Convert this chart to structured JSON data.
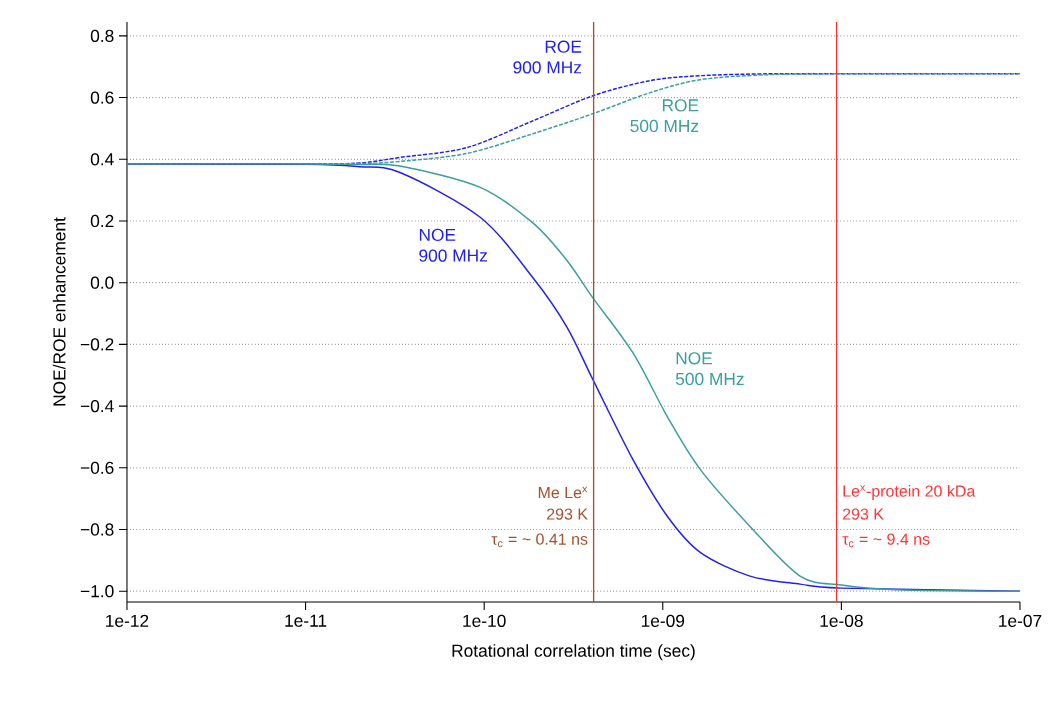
{
  "chart_data": {
    "type": "line",
    "xlabel": "Rotational correlation time (sec)",
    "ylabel": "NOE/ROE enhancement",
    "series": [
      {
        "name": "ROE 900 MHz",
        "color": "#2020ee",
        "line_style": "dashed",
        "x": [
          1e-12,
          1e-11,
          2e-11,
          3.38e-11,
          8e-11,
          1.88e-10,
          4.07e-10,
          8.5e-10,
          1.62e-09,
          3.83e-09,
          1e-08,
          1e-07
        ],
        "values": [
          0.385,
          0.385,
          0.388,
          0.406,
          0.438,
          0.525,
          0.606,
          0.655,
          0.671,
          0.677,
          0.677,
          0.677
        ]
      },
      {
        "name": "ROE 500 MHz",
        "color": "#3a9e9e",
        "line_style": "dashed",
        "x": [
          1e-12,
          1e-11,
          2e-11,
          3.38e-11,
          8e-11,
          1.88e-10,
          4.07e-10,
          8.5e-10,
          1.62e-09,
          3.83e-09,
          1e-08,
          1e-07
        ],
        "values": [
          0.385,
          0.385,
          0.386,
          0.393,
          0.419,
          0.483,
          0.548,
          0.616,
          0.658,
          0.674,
          0.677,
          0.677
        ]
      },
      {
        "name": "NOE 900 MHz",
        "color": "#2020ee",
        "line_style": "solid",
        "x": [
          1e-12,
          1e-11,
          2e-11,
          3.38e-11,
          9.5e-11,
          1.88e-10,
          2.9e-10,
          4.07e-10,
          6.8e-10,
          1.06e-09,
          1.62e-09,
          3.08e-09,
          5.87e-09,
          1e-08,
          1e-07
        ],
        "values": [
          0.385,
          0.384,
          0.376,
          0.357,
          0.212,
          0.015,
          -0.143,
          -0.315,
          -0.573,
          -0.757,
          -0.874,
          -0.951,
          -0.977,
          -0.99,
          -1.0
        ]
      },
      {
        "name": "NOE 500 MHz",
        "color": "#3a9e9e",
        "line_style": "solid",
        "x": [
          1e-12,
          1e-11,
          2e-11,
          3.38e-11,
          9.5e-11,
          1.88e-10,
          2.9e-10,
          4.07e-10,
          6.8e-10,
          1.06e-09,
          1.62e-09,
          3.08e-09,
          5.87e-09,
          1e-08,
          2e-08,
          1e-07
        ],
        "values": [
          0.385,
          0.385,
          0.383,
          0.378,
          0.309,
          0.193,
          0.073,
          -0.05,
          -0.227,
          -0.434,
          -0.605,
          -0.79,
          -0.951,
          -0.98,
          -0.995,
          -1.0
        ]
      }
    ],
    "ref_lines": [
      {
        "axis": "x",
        "value": 4.1e-10,
        "color": "#a5502a"
      },
      {
        "axis": "x",
        "value": 9.4e-09,
        "color": "#ff3333"
      }
    ],
    "annotations": [
      "Me Le$^{x}$",
      "293 K",
      "τ$_{c}$ = ~  0.41 ns",
      "Le$^{x}$-protein 20 kDa",
      "293 K",
      "τ$_{c}$ = ~  9.4 ns"
    ],
    "log": "x",
    "grid": "y",
    "xlim": [
      1e-12,
      1e-07
    ],
    "ylim": [
      -1.035,
      0.845
    ],
    "xticks": [
      {
        "value": 1e-12,
        "label": "1e-12"
      },
      {
        "value": 1e-11,
        "label": "1e-11"
      },
      {
        "value": 1e-10,
        "label": "1e-10"
      },
      {
        "value": 1e-09,
        "label": "1e-09"
      },
      {
        "value": 1e-08,
        "label": "1e-08"
      },
      {
        "value": 1e-07,
        "label": "1e-07"
      }
    ],
    "yticks": [
      {
        "value": -1.0,
        "label": "−1.0"
      },
      {
        "value": -0.8,
        "label": "−0.8"
      },
      {
        "value": -0.6,
        "label": "−0.6"
      },
      {
        "value": -0.4,
        "label": "−0.4"
      },
      {
        "value": -0.2,
        "label": "−0.2"
      },
      {
        "value": 0.0,
        "label": "0.0"
      },
      {
        "value": 0.2,
        "label": "0.2"
      },
      {
        "value": 0.4,
        "label": "0.4"
      },
      {
        "value": 0.6,
        "label": "0.6"
      },
      {
        "value": 0.8,
        "label": "0.8"
      }
    ]
  }
}
